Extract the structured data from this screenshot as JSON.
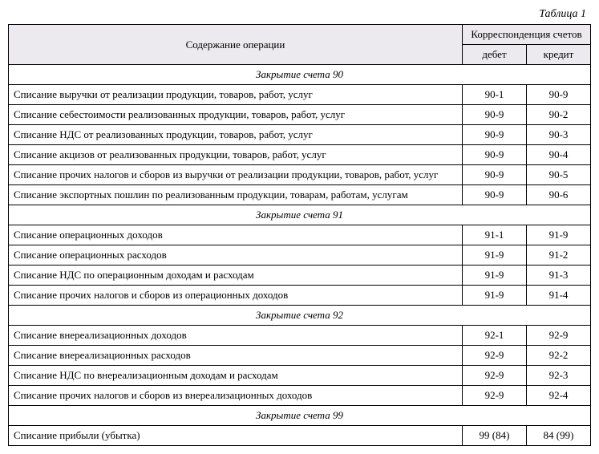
{
  "caption": "Таблица 1",
  "headers": {
    "description": "Содержание операции",
    "group": "Корреспонденция счетов",
    "debit": "дебет",
    "credit": "кредит"
  },
  "sections": [
    {
      "title": "Закрытие счета 90",
      "rows": [
        {
          "desc": "Списание выручки от реализации продукции, товаров, работ, услуг",
          "debit": "90-1",
          "credit": "90-9"
        },
        {
          "desc": "Списание себестоимости реализованных продукции, товаров, работ, услуг",
          "debit": "90-9",
          "credit": "90-2"
        },
        {
          "desc": "Списание НДС от реализованных продукции, товаров, работ, услуг",
          "debit": "90-9",
          "credit": "90-3"
        },
        {
          "desc": "Списание акцизов от реализованных продукции, товаров, работ, услуг",
          "debit": "90-9",
          "credit": "90-4"
        },
        {
          "desc": "Списание прочих налогов и сборов из выручки от реализации продукции, товаров, работ, услуг",
          "debit": "90-9",
          "credit": "90-5"
        },
        {
          "desc": "Списание экспортных пошлин по реализованным продукции, товарам, работам, услугам",
          "debit": "90-9",
          "credit": "90-6"
        }
      ]
    },
    {
      "title": "Закрытие счета 91",
      "rows": [
        {
          "desc": "Списание операционных доходов",
          "debit": "91-1",
          "credit": "91-9"
        },
        {
          "desc": "Списание операционных расходов",
          "debit": "91-9",
          "credit": "91-2"
        },
        {
          "desc": "Списание НДС по операционным доходам и расходам",
          "debit": "91-9",
          "credit": "91-3"
        },
        {
          "desc": "Списание прочих налогов и сборов из операционных доходов",
          "debit": "91-9",
          "credit": "91-4"
        }
      ]
    },
    {
      "title": "Закрытие счета 92",
      "rows": [
        {
          "desc": "Списание внереализационных доходов",
          "debit": "92-1",
          "credit": "92-9"
        },
        {
          "desc": "Списание внереализационных расходов",
          "debit": "92-9",
          "credit": "92-2"
        },
        {
          "desc": "Списание НДС по внереализационным доходам и расходам",
          "debit": "92-9",
          "credit": "92-3"
        },
        {
          "desc": "Списание прочих налогов и сборов из внереализационных доходов",
          "debit": "92-9",
          "credit": "92-4"
        }
      ]
    },
    {
      "title": "Закрытие счета 99",
      "rows": [
        {
          "desc": "Списание прибыли (убытка)",
          "debit": "99 (84)",
          "credit": "84 (99)"
        }
      ]
    }
  ]
}
